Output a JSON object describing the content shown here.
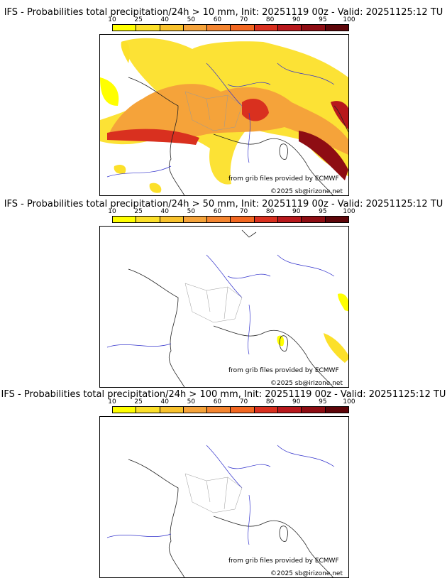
{
  "colorbar": {
    "ticks": [
      "10",
      "25",
      "40",
      "50",
      "60",
      "70",
      "80",
      "90",
      "95",
      "100"
    ],
    "colors": [
      "#ffff00",
      "#fce02a",
      "#f8c22d",
      "#f5a33a",
      "#f48530",
      "#f26721",
      "#d9301f",
      "#b8181c",
      "#8e0d13",
      "#5e0509"
    ]
  },
  "panels": [
    {
      "title": "IFS - Probabilities total precipitation/24h > 10 mm, Init: 20251119 00z - Valid: 20251125:12 TU",
      "credit_source": "from grib files provided by ECMWF",
      "credit_copyright": "©2025 sb@irizone.net"
    },
    {
      "title": "IFS - Probabilities total precipitation/24h > 50 mm, Init: 20251119 00z - Valid: 20251125:12 TU",
      "credit_source": "from grib files provided by ECMWF",
      "credit_copyright": "©2025 sb@irizone.net"
    },
    {
      "title": "IFS - Probabilities total precipitation/24h > 100 mm, Init: 20251119 00z - Valid: 20251125:12 TU",
      "credit_source": "from grib files provided by ECMWF",
      "credit_copyright": "©2025 sb@irizone.net"
    }
  ]
}
